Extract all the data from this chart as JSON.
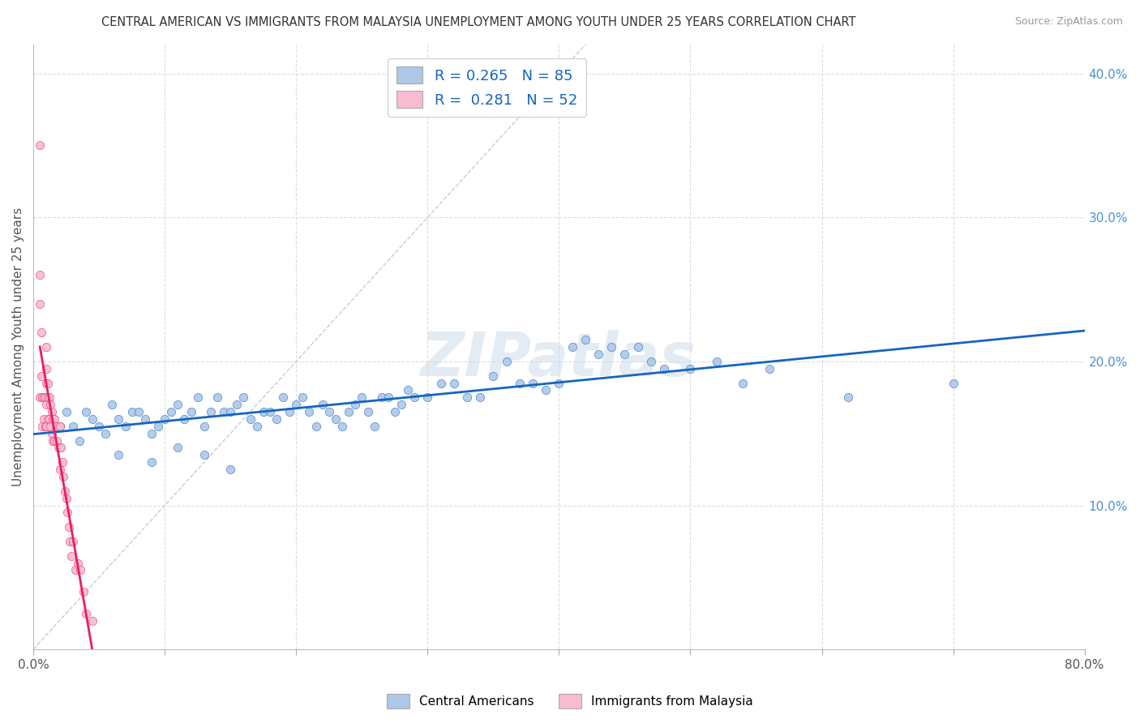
{
  "title": "CENTRAL AMERICAN VS IMMIGRANTS FROM MALAYSIA UNEMPLOYMENT AMONG YOUTH UNDER 25 YEARS CORRELATION CHART",
  "source": "Source: ZipAtlas.com",
  "ylabel": "Unemployment Among Youth under 25 years",
  "xlim": [
    0.0,
    0.8
  ],
  "ylim": [
    0.0,
    0.42
  ],
  "xticks": [
    0.0,
    0.1,
    0.2,
    0.3,
    0.4,
    0.5,
    0.6,
    0.7,
    0.8
  ],
  "yticks_right": [
    0.0,
    0.1,
    0.2,
    0.3,
    0.4
  ],
  "yticklabels_right": [
    "",
    "10.0%",
    "20.0%",
    "30.0%",
    "40.0%"
  ],
  "blue_R": 0.265,
  "blue_N": 85,
  "pink_R": 0.281,
  "pink_N": 52,
  "blue_color": "#adc8e8",
  "blue_line_color": "#1565c0",
  "pink_color": "#f8bbd0",
  "pink_line_color": "#e91e63",
  "diagonal_color": "#cccccc",
  "watermark": "ZIPatlas",
  "background_color": "#ffffff",
  "blue_scatter_x": [
    0.02,
    0.025,
    0.03,
    0.035,
    0.04,
    0.045,
    0.05,
    0.055,
    0.06,
    0.065,
    0.07,
    0.075,
    0.08,
    0.085,
    0.09,
    0.095,
    0.1,
    0.105,
    0.11,
    0.115,
    0.12,
    0.125,
    0.13,
    0.135,
    0.14,
    0.145,
    0.15,
    0.155,
    0.16,
    0.165,
    0.17,
    0.175,
    0.18,
    0.185,
    0.19,
    0.195,
    0.2,
    0.205,
    0.21,
    0.215,
    0.22,
    0.225,
    0.23,
    0.235,
    0.24,
    0.245,
    0.25,
    0.255,
    0.26,
    0.265,
    0.27,
    0.275,
    0.28,
    0.285,
    0.29,
    0.3,
    0.31,
    0.32,
    0.33,
    0.34,
    0.35,
    0.36,
    0.37,
    0.38,
    0.39,
    0.4,
    0.41,
    0.42,
    0.43,
    0.44,
    0.45,
    0.46,
    0.47,
    0.48,
    0.5,
    0.52,
    0.54,
    0.56,
    0.62,
    0.7,
    0.065,
    0.09,
    0.11,
    0.13,
    0.15
  ],
  "blue_scatter_y": [
    0.155,
    0.165,
    0.155,
    0.145,
    0.165,
    0.16,
    0.155,
    0.15,
    0.17,
    0.16,
    0.155,
    0.165,
    0.165,
    0.16,
    0.15,
    0.155,
    0.16,
    0.165,
    0.17,
    0.16,
    0.165,
    0.175,
    0.155,
    0.165,
    0.175,
    0.165,
    0.165,
    0.17,
    0.175,
    0.16,
    0.155,
    0.165,
    0.165,
    0.16,
    0.175,
    0.165,
    0.17,
    0.175,
    0.165,
    0.155,
    0.17,
    0.165,
    0.16,
    0.155,
    0.165,
    0.17,
    0.175,
    0.165,
    0.155,
    0.175,
    0.175,
    0.165,
    0.17,
    0.18,
    0.175,
    0.175,
    0.185,
    0.185,
    0.175,
    0.175,
    0.19,
    0.2,
    0.185,
    0.185,
    0.18,
    0.185,
    0.21,
    0.215,
    0.205,
    0.21,
    0.205,
    0.21,
    0.2,
    0.195,
    0.195,
    0.2,
    0.185,
    0.195,
    0.175,
    0.185,
    0.135,
    0.13,
    0.14,
    0.135,
    0.125
  ],
  "pink_scatter_x": [
    0.005,
    0.005,
    0.005,
    0.005,
    0.006,
    0.006,
    0.007,
    0.007,
    0.008,
    0.008,
    0.009,
    0.009,
    0.01,
    0.01,
    0.01,
    0.01,
    0.01,
    0.011,
    0.011,
    0.011,
    0.012,
    0.012,
    0.013,
    0.013,
    0.014,
    0.014,
    0.015,
    0.015,
    0.016,
    0.016,
    0.017,
    0.018,
    0.019,
    0.02,
    0.02,
    0.02,
    0.021,
    0.022,
    0.023,
    0.024,
    0.025,
    0.026,
    0.027,
    0.028,
    0.029,
    0.03,
    0.032,
    0.034,
    0.036,
    0.038,
    0.04,
    0.045
  ],
  "pink_scatter_y": [
    0.35,
    0.26,
    0.24,
    0.175,
    0.22,
    0.19,
    0.175,
    0.155,
    0.175,
    0.16,
    0.175,
    0.155,
    0.21,
    0.195,
    0.185,
    0.17,
    0.155,
    0.185,
    0.175,
    0.16,
    0.175,
    0.16,
    0.17,
    0.155,
    0.165,
    0.15,
    0.16,
    0.145,
    0.16,
    0.145,
    0.155,
    0.145,
    0.14,
    0.155,
    0.14,
    0.125,
    0.14,
    0.13,
    0.12,
    0.11,
    0.105,
    0.095,
    0.085,
    0.075,
    0.065,
    0.075,
    0.055,
    0.06,
    0.055,
    0.04,
    0.025,
    0.02
  ]
}
